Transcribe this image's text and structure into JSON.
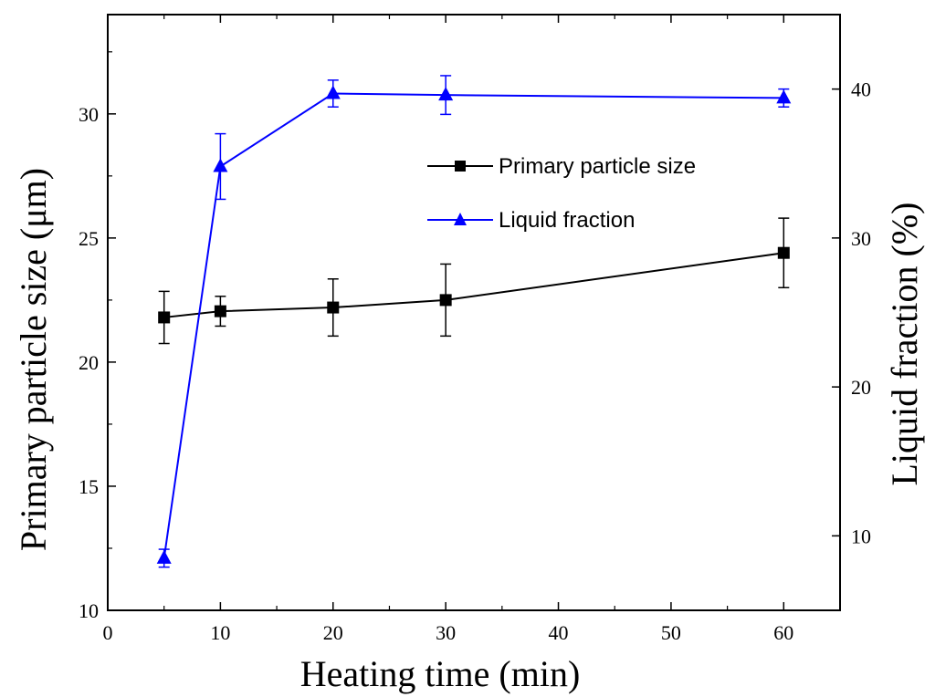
{
  "chart_data": {
    "type": "line",
    "title": "",
    "xlabel": "Heating time (min)",
    "ylabel": "Primary particle size (μm)",
    "y2label": "Liquid fraction (%)",
    "xlim": [
      0,
      65
    ],
    "ylim": [
      10,
      34
    ],
    "y2lim": [
      5,
      45
    ],
    "x_ticks": [
      0,
      10,
      20,
      30,
      40,
      50,
      60
    ],
    "y_ticks": [
      10,
      15,
      20,
      25,
      30
    ],
    "y2_ticks": [
      10,
      20,
      30,
      40
    ],
    "grid": false,
    "legend_position": "upper-right-inside",
    "series": [
      {
        "name": "Primary particle size",
        "axis": "left",
        "color": "#000000",
        "marker": "square",
        "x": [
          5,
          10,
          20,
          30,
          60
        ],
        "y": [
          21.8,
          22.05,
          22.2,
          22.5,
          24.4
        ],
        "err": [
          1.05,
          0.6,
          1.15,
          1.45,
          1.4
        ]
      },
      {
        "name": "Liquid fraction",
        "axis": "right",
        "color": "#0000ff",
        "marker": "triangle",
        "x": [
          5,
          10,
          20,
          30,
          60
        ],
        "y": [
          8.5,
          34.8,
          39.7,
          39.6,
          39.4
        ],
        "err": [
          0.6,
          2.2,
          0.9,
          1.3,
          0.6
        ]
      }
    ]
  }
}
